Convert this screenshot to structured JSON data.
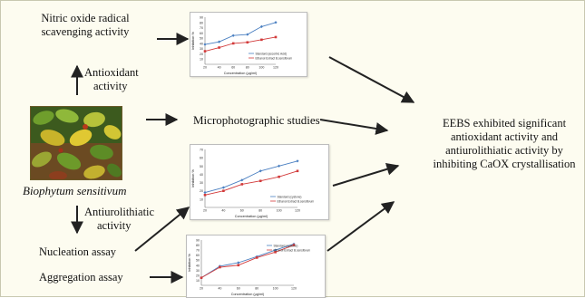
{
  "labels": {
    "nitric_line1": "Nitric oxide radical",
    "nitric_line2": "scavenging activity",
    "antioxidant_line1": "Antioxidant",
    "antioxidant_line2": "activity",
    "plant_name": "Biophytum sensitivum",
    "microphotographic": "Microphotographic studies",
    "antiurolithiatic_line1": "Antiurolithiatic",
    "antiurolithiatic_line2": "activity",
    "nucleation": "Nucleation assay",
    "aggregation": "Aggregation assay",
    "conclusion_line1": "EEBS exhibited significant",
    "conclusion_line2": "antioxidant activity and",
    "conclusion_line3": "antiurolithiatic activity by",
    "conclusion_line4": "inhibiting CaOX crystallisation"
  },
  "colors": {
    "background": "#fdfcf0",
    "standard_series": "#4a7fc1",
    "extract_series": "#d23a3a",
    "arrow": "#222222"
  },
  "chart_data": [
    {
      "type": "line",
      "x": [
        20,
        40,
        60,
        80,
        100,
        120
      ],
      "xlabel": "Concentration (µg/ml)",
      "ylabel": "Inhibition %",
      "xticks": [
        "20",
        "40",
        "60",
        "80",
        "100",
        "120"
      ],
      "yticks": [
        "10",
        "20",
        "30",
        "40",
        "50",
        "60",
        "70",
        "80",
        "90"
      ],
      "ylim": [
        0,
        90
      ],
      "legend_position": "bottom-right",
      "series": [
        {
          "name": "Standard (ascorbic Acid)",
          "values": [
            38,
            43,
            55,
            57,
            72,
            80
          ]
        },
        {
          "name": "Ethanol Extract B.sensitivum",
          "values": [
            25,
            32,
            40,
            42,
            47,
            52
          ]
        }
      ]
    },
    {
      "type": "line",
      "x": [
        20,
        40,
        60,
        80,
        100,
        120
      ],
      "xlabel": "Concentration (µg/ml)",
      "ylabel": "Inhibition %",
      "xticks": [
        "20",
        "40",
        "60",
        "80",
        "100",
        "120"
      ],
      "yticks": [
        "10",
        "20",
        "30",
        "40",
        "50",
        "60",
        "70"
      ],
      "ylim": [
        0,
        70
      ],
      "legend_position": "bottom-right",
      "series": [
        {
          "name": "Standard (cystone)",
          "values": [
            18,
            24,
            33,
            44,
            50,
            56
          ]
        },
        {
          "name": "Ethanol Extract B.sensitivum",
          "values": [
            15,
            20,
            28,
            32,
            37,
            44
          ]
        }
      ]
    },
    {
      "type": "line",
      "x": [
        20,
        40,
        60,
        80,
        100,
        120
      ],
      "xlabel": "Concentration (µg/ml)",
      "ylabel": "Inhibition %",
      "xticks": [
        "20",
        "40",
        "60",
        "80",
        "100",
        "120"
      ],
      "yticks": [
        "10",
        "20",
        "30",
        "40",
        "50",
        "60",
        "70",
        "80",
        "90"
      ],
      "ylim": [
        0,
        90
      ],
      "legend_position": "top-right",
      "series": [
        {
          "name": "Standard (cystone)",
          "values": [
            15,
            38,
            45,
            57,
            70,
            82
          ]
        },
        {
          "name": "Ethanol Extract B.sensitivum",
          "values": [
            15,
            36,
            40,
            55,
            66,
            80
          ]
        }
      ]
    }
  ]
}
